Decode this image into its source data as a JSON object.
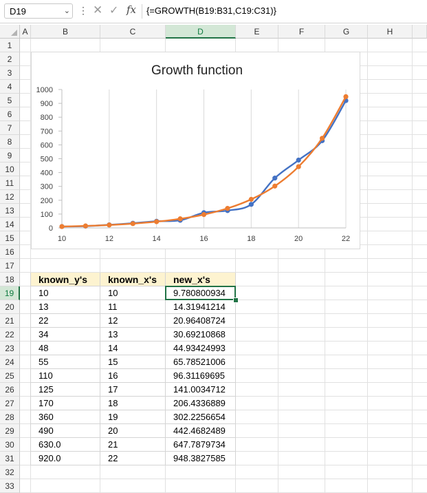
{
  "name_box": "D19",
  "formula_bar": {
    "more_icon": "⋮",
    "cancel_icon": "✕",
    "enter_icon": "✓",
    "fx_label": "fx",
    "formula": "{=GROWTH(B19:B31,C19:C31)}"
  },
  "columns": [
    "A",
    "B",
    "C",
    "D",
    "E",
    "F",
    "G",
    "H"
  ],
  "rows": [
    "1",
    "2",
    "3",
    "4",
    "5",
    "6",
    "7",
    "8",
    "9",
    "10",
    "11",
    "12",
    "13",
    "14",
    "15",
    "16",
    "17",
    "18",
    "19",
    "20",
    "21",
    "22",
    "23",
    "24",
    "25",
    "26",
    "27",
    "28",
    "29",
    "30",
    "31",
    "32",
    "33"
  ],
  "selected_column": "D",
  "selected_row": "19",
  "table": {
    "headers": [
      "known_y's",
      "known_x's",
      "new_x's"
    ],
    "rows": [
      [
        "10",
        "10",
        "9.780800934"
      ],
      [
        "13",
        "11",
        "14.31941214"
      ],
      [
        "22",
        "12",
        "20.96408724"
      ],
      [
        "34",
        "13",
        "30.69210868"
      ],
      [
        "48",
        "14",
        "44.93424993"
      ],
      [
        "55",
        "15",
        "65.78521006"
      ],
      [
        "110",
        "16",
        "96.31169695"
      ],
      [
        "125",
        "17",
        "141.0034712"
      ],
      [
        "170",
        "18",
        "206.4336889"
      ],
      [
        "360",
        "19",
        "302.2256654"
      ],
      [
        "490",
        "20",
        "442.4682489"
      ],
      [
        "630.0",
        "21",
        "647.7879734"
      ],
      [
        "920.0",
        "22",
        "948.3827585"
      ]
    ]
  },
  "chart_data": {
    "type": "line",
    "title": "Growth function",
    "x": [
      10,
      11,
      12,
      13,
      14,
      15,
      16,
      17,
      18,
      19,
      20,
      21,
      22
    ],
    "xticks": [
      "10",
      "12",
      "14",
      "16",
      "18",
      "20",
      "22"
    ],
    "yticks": [
      "0",
      "100",
      "200",
      "300",
      "400",
      "500",
      "600",
      "700",
      "800",
      "900",
      "1000"
    ],
    "xlim": [
      10,
      22
    ],
    "ylim": [
      0,
      1000
    ],
    "grid": "vertical",
    "legend": "none",
    "series": [
      {
        "color": "#4472c4",
        "values": [
          10,
          13,
          22,
          34,
          48,
          55,
          110,
          125,
          170,
          360,
          490,
          630,
          920
        ]
      },
      {
        "color": "#ed7d31",
        "values": [
          9.780800934,
          14.31941214,
          20.96408724,
          30.69210868,
          44.93424993,
          65.78521006,
          96.31169695,
          141.0034712,
          206.4336889,
          302.2256654,
          442.4682489,
          647.7879734,
          948.3827585
        ]
      }
    ]
  }
}
